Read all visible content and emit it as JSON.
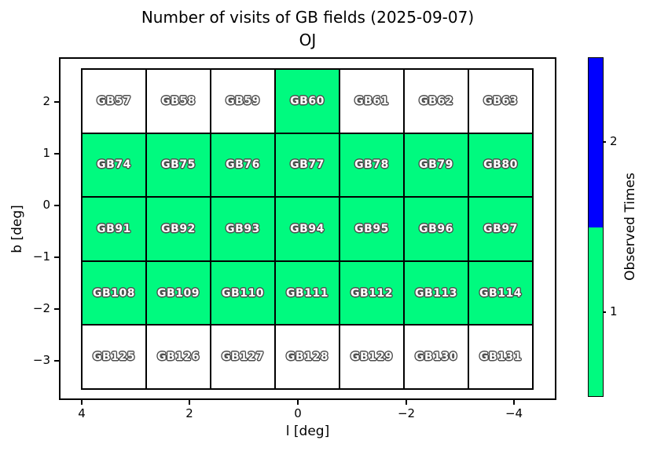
{
  "title": {
    "line1": "Number of visits of GB fields (2025-09-07)",
    "line2": "OJ"
  },
  "chart_data": {
    "type": "heatmap",
    "title": "Number of visits of GB fields (2025-09-07)",
    "subtitle": "OJ",
    "xlabel": "l [deg]",
    "ylabel": "b [deg]",
    "x_ticks": [
      "4",
      "2",
      "0",
      "−2",
      "−4"
    ],
    "y_ticks": [
      "2",
      "1",
      "0",
      "−1",
      "−2",
      "−3"
    ],
    "x_axis_reversed": true,
    "grid": {
      "columns": 7,
      "rows": 5
    },
    "visit_colors": {
      "0": "#ffffff",
      "1": "#00fa7f",
      "2": "#0000ff"
    },
    "rows": [
      {
        "fields": [
          "GB57",
          "GB58",
          "GB59",
          "GB60",
          "GB61",
          "GB62",
          "GB63"
        ],
        "visits": [
          0,
          0,
          0,
          1,
          0,
          0,
          0
        ]
      },
      {
        "fields": [
          "GB74",
          "GB75",
          "GB76",
          "GB77",
          "GB78",
          "GB79",
          "GB80"
        ],
        "visits": [
          1,
          1,
          1,
          1,
          1,
          1,
          1
        ]
      },
      {
        "fields": [
          "GB91",
          "GB92",
          "GB93",
          "GB94",
          "GB95",
          "GB96",
          "GB97"
        ],
        "visits": [
          1,
          1,
          1,
          1,
          1,
          1,
          1
        ]
      },
      {
        "fields": [
          "GB108",
          "GB109",
          "GB110",
          "GB111",
          "GB112",
          "GB113",
          "GB114"
        ],
        "visits": [
          1,
          1,
          1,
          1,
          1,
          1,
          1
        ]
      },
      {
        "fields": [
          "GB125",
          "GB126",
          "GB127",
          "GB128",
          "GB129",
          "GB130",
          "GB131"
        ],
        "visits": [
          0,
          0,
          0,
          0,
          0,
          0,
          0
        ]
      }
    ],
    "colorbar": {
      "label": "Observed Times",
      "ticks": [
        {
          "label": "2",
          "color": "#0000ff"
        },
        {
          "label": "1",
          "color": "#00fa7f"
        }
      ]
    }
  }
}
